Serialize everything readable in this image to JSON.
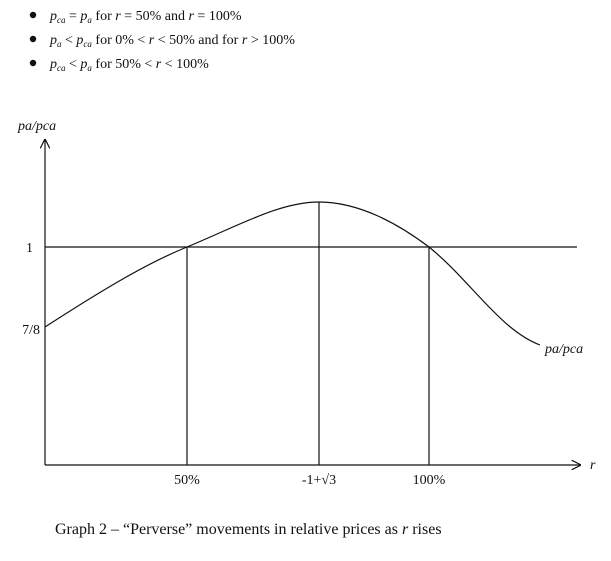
{
  "bullets": [
    [
      "p",
      "ca",
      " = ",
      "p",
      "a",
      " for ",
      "r",
      " = 50% and ",
      "r",
      " = 100%"
    ],
    [
      "p",
      "a",
      " < ",
      "p",
      "ca",
      " for 0% < ",
      "r",
      " < 50% and for ",
      "r",
      " > 100%"
    ],
    [
      "p",
      "ca",
      " < ",
      "p",
      "a",
      " for 50% < ",
      "r",
      " < 100%"
    ]
  ],
  "graph": {
    "y_axis_label": "pa/pca",
    "x_axis_label": "r",
    "y_labels": [
      "1",
      "7/8"
    ],
    "x_labels": [
      "50%",
      "-1+√3",
      "100%"
    ],
    "curve_label": "pa/pca"
  },
  "caption": [
    "Graph 2 – “Perverse” movements in relative prices as ",
    "r",
    " rises"
  ]
}
